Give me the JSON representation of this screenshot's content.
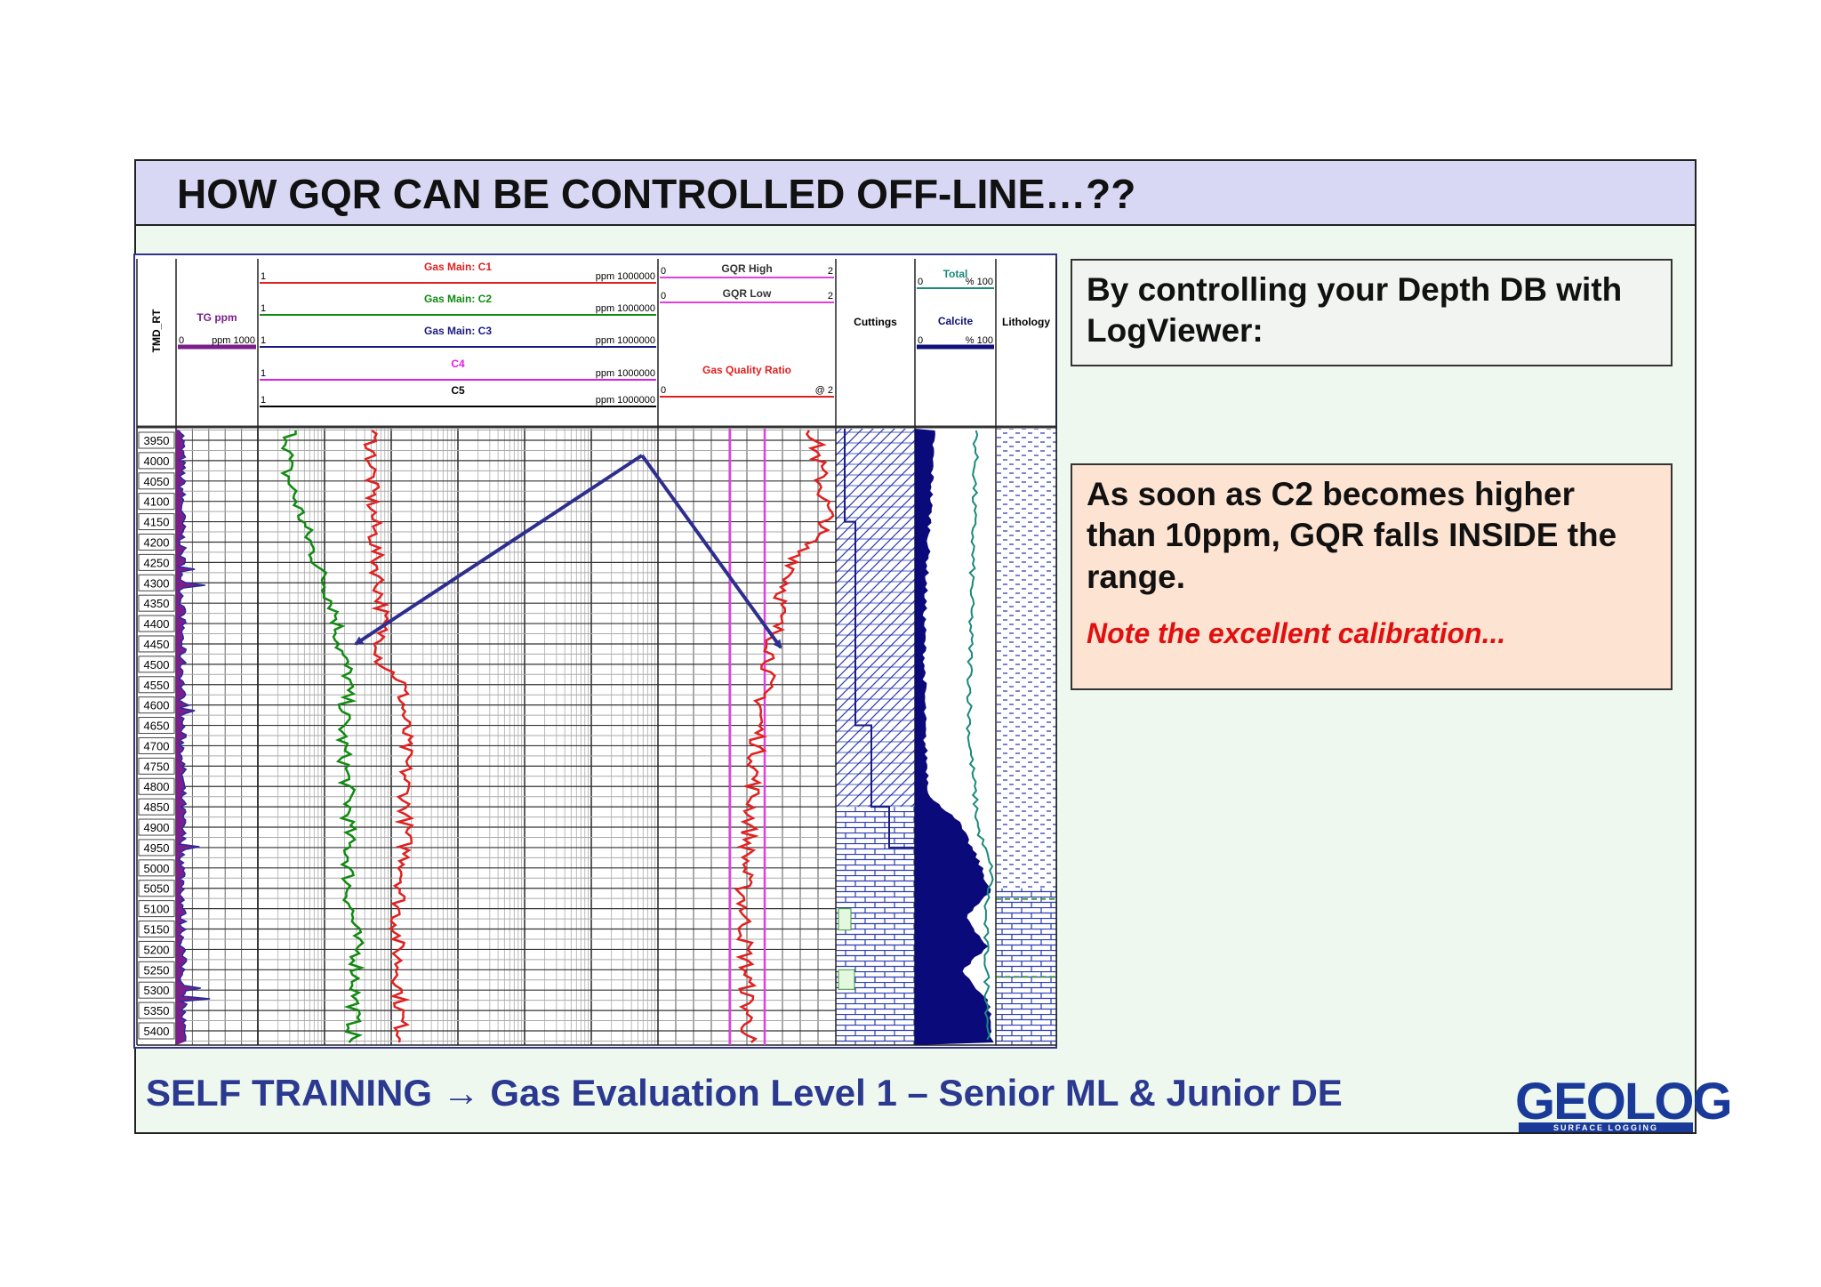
{
  "title": "HOW GQR CAN BE CONTROLLED OFF-LINE…??",
  "log": {
    "depth_header": "TMD_RT",
    "tg": {
      "name": "TG ppm",
      "min": 0,
      "max": "ppm 1000",
      "color": "#7a1f8a"
    },
    "gas": [
      {
        "name": "Gas Main: C1",
        "min": 1,
        "max": "ppm 1000000",
        "color": "#e02020"
      },
      {
        "name": "Gas Main: C2",
        "min": 1,
        "max": "ppm 1000000",
        "color": "#108a10"
      },
      {
        "name": "Gas Main: C3",
        "min": 1,
        "max": "ppm 1000000",
        "color": "#1a1a80"
      },
      {
        "name": "C4",
        "min": 1,
        "max": "ppm 1000000",
        "color": "#e020e0"
      },
      {
        "name": "C5",
        "min": 1,
        "max": "ppm 1000000",
        "color": "#000000"
      }
    ],
    "gqr": [
      {
        "name": "GQR High",
        "min": 0,
        "max": 2,
        "color": "#e040e0"
      },
      {
        "name": "GQR Low",
        "min": 0,
        "max": 2,
        "color": "#e040e0"
      },
      {
        "name": "Gas Quality Ratio",
        "min": 0,
        "max": "@ 2",
        "color": "#e02020"
      }
    ],
    "cuttings": "Cuttings",
    "calcite": [
      {
        "name": "Total",
        "min": 0,
        "max": "% 100",
        "color": "#1a8a7a"
      },
      {
        "name": "Calcite",
        "min": 0,
        "max": "% 100",
        "color": "#10107a"
      }
    ],
    "lithology": "Lithology",
    "depths": [
      3950,
      4000,
      4050,
      4100,
      4150,
      4200,
      4250,
      4300,
      4350,
      4400,
      4450,
      4500,
      4550,
      4600,
      4650,
      4700,
      4750,
      4800,
      4850,
      4900,
      4950,
      5000,
      5050,
      5100,
      5150,
      5200,
      5250,
      5300,
      5350,
      5400
    ]
  },
  "boxes": [
    {
      "lines": [
        "By controlling your Depth DB with",
        "LogViewer:"
      ]
    },
    {
      "lines": [
        "As soon as C2 becomes higher",
        "than 10ppm, GQR falls INSIDE the",
        "range."
      ],
      "note": "Note the excellent calibration..."
    }
  ],
  "footer": "SELF TRAINING → Gas Evaluation Level 1 – Senior ML & Junior DE",
  "logo": {
    "name": "GEOLOG",
    "tagline": "SURFACE LOGGING"
  }
}
